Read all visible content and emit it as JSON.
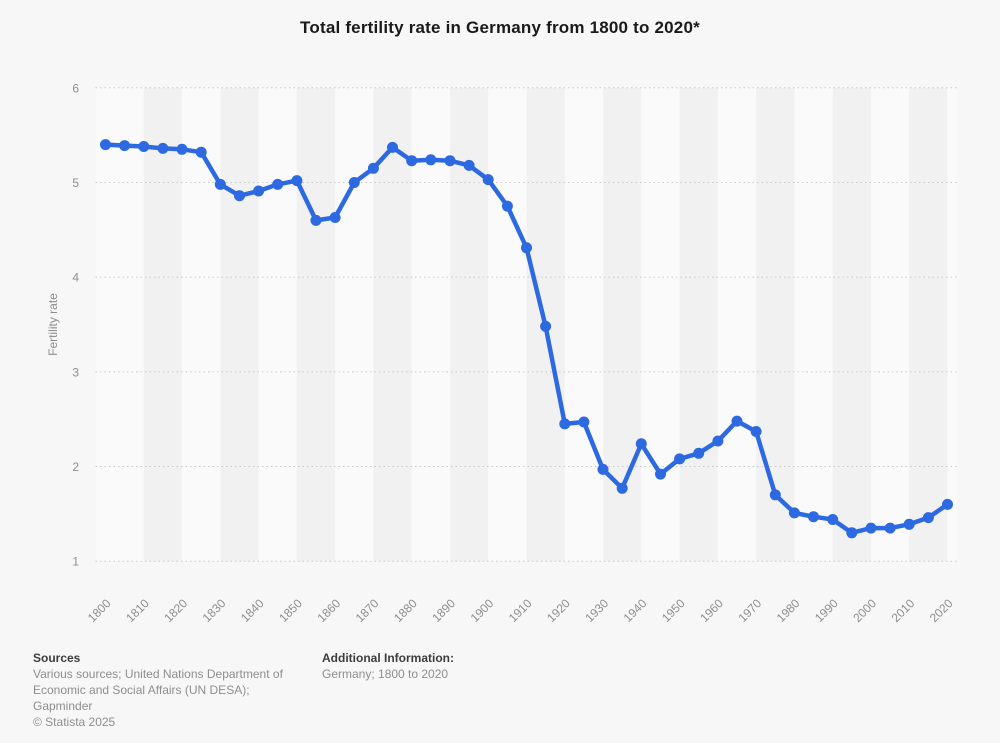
{
  "title": "Total fertility rate in Germany from 1800 to 2020*",
  "colors": {
    "page_background": "#f7f7f7",
    "line": "#2d69e0",
    "band_light": "#fafafa",
    "band_dark": "#f1f1f2",
    "gridline": "#c9c9c9",
    "axis_text": "#8e8e8e",
    "title_text": "#1a1a1a",
    "footer_head_text": "#3d3d3d",
    "footer_body_text": "#8e8e8e"
  },
  "chart_data": {
    "type": "line",
    "title": "Total fertility rate in Germany from 1800 to 2020*",
    "xlabel": "",
    "ylabel": "Fertility rate",
    "ylim": [
      1,
      6
    ],
    "yticks": [
      1,
      2,
      3,
      4,
      5,
      6
    ],
    "xticks": [
      1800,
      1810,
      1820,
      1830,
      1840,
      1850,
      1860,
      1870,
      1880,
      1890,
      1900,
      1910,
      1920,
      1930,
      1940,
      1950,
      1960,
      1970,
      1980,
      1990,
      2000,
      2010,
      2020
    ],
    "grid": "horizontal-dotted",
    "legend": "none",
    "background_bands": "alternating vertical decade stripes",
    "series": [
      {
        "name": "Fertility rate",
        "color": "#2d69e0",
        "x": [
          1800,
          1805,
          1810,
          1815,
          1820,
          1825,
          1830,
          1835,
          1840,
          1845,
          1850,
          1855,
          1860,
          1865,
          1870,
          1875,
          1880,
          1885,
          1890,
          1895,
          1900,
          1905,
          1910,
          1915,
          1920,
          1925,
          1930,
          1935,
          1940,
          1945,
          1950,
          1955,
          1960,
          1965,
          1970,
          1975,
          1980,
          1985,
          1990,
          1995,
          2000,
          2005,
          2010,
          2015,
          2020
        ],
        "values": [
          5.4,
          5.39,
          5.38,
          5.36,
          5.35,
          5.32,
          4.98,
          4.86,
          4.91,
          4.98,
          5.02,
          4.6,
          4.63,
          5.0,
          5.15,
          5.37,
          5.23,
          5.24,
          5.23,
          5.18,
          5.03,
          4.75,
          4.31,
          3.48,
          2.45,
          2.47,
          1.97,
          1.77,
          2.24,
          1.92,
          2.08,
          2.14,
          2.27,
          2.48,
          2.37,
          1.7,
          1.51,
          1.47,
          1.44,
          1.3,
          1.35,
          1.35,
          1.39,
          1.46,
          1.6
        ]
      }
    ]
  },
  "footer": {
    "sources_label": "Sources",
    "sources_lines": [
      "Various sources; United Nations Department of",
      "Economic and Social Affairs (UN DESA);",
      "Gapminder"
    ],
    "copyright": "© Statista 2025",
    "additional_label": "Additional Information:",
    "additional_text": "Germany; 1800 to 2020"
  }
}
